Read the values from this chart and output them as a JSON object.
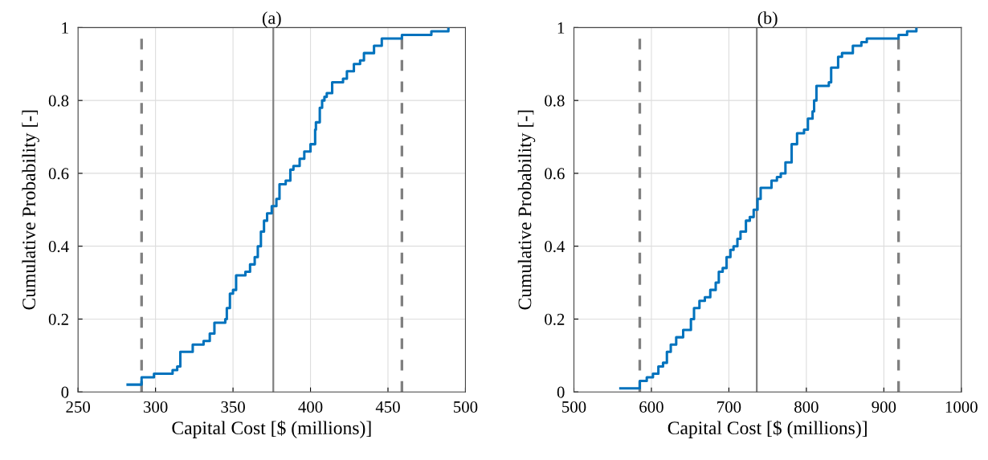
{
  "chart_data": [
    {
      "type": "step",
      "title": "(a)",
      "xlabel": "Capital Cost [$ (millions)]",
      "ylabel": "Cumulative Probability [-]",
      "xlim": [
        250,
        500
      ],
      "xticks": [
        250,
        300,
        350,
        400,
        450,
        500
      ],
      "ylim": [
        0,
        1
      ],
      "yticks": [
        0,
        0.2,
        0.4,
        0.6,
        0.8,
        1
      ],
      "grid": true,
      "series": [
        {
          "color": "#0072bd",
          "x": [
            282,
            291,
            299,
            311,
            314,
            316,
            324,
            331,
            335,
            338,
            345,
            346,
            348,
            350,
            352,
            358,
            361,
            364,
            366,
            368,
            370,
            372,
            375,
            378,
            380,
            384,
            387,
            389,
            393,
            396,
            400,
            403,
            403.5,
            406,
            407.5,
            409,
            410.5,
            414,
            421,
            423.5,
            428,
            432,
            434.5,
            441,
            446,
            459,
            478,
            489
          ],
          "values": [
            0.02,
            0.04,
            0.05,
            0.06,
            0.07,
            0.11,
            0.13,
            0.14,
            0.16,
            0.19,
            0.2,
            0.23,
            0.27,
            0.28,
            0.32,
            0.33,
            0.35,
            0.37,
            0.4,
            0.44,
            0.47,
            0.49,
            0.51,
            0.53,
            0.57,
            0.58,
            0.61,
            0.62,
            0.64,
            0.66,
            0.68,
            0.72,
            0.74,
            0.78,
            0.8,
            0.81,
            0.82,
            0.85,
            0.86,
            0.88,
            0.9,
            0.91,
            0.93,
            0.95,
            0.97,
            0.98,
            0.99,
            1.0
          ]
        }
      ],
      "ref_lines": [
        {
          "axis": "x",
          "value": 291,
          "color": "#808080",
          "line_style": "dashed"
        },
        {
          "axis": "x",
          "value": 376,
          "color": "#808080",
          "line_style": "solid"
        },
        {
          "axis": "x",
          "value": 459,
          "color": "#808080",
          "line_style": "dashed"
        }
      ]
    },
    {
      "type": "step",
      "title": "(b)",
      "xlabel": "Capital Cost [$ (millions)]",
      "ylabel": "Cumulative Probability [-]",
      "xlim": [
        500,
        1000
      ],
      "xticks": [
        500,
        600,
        700,
        800,
        900,
        1000
      ],
      "ylim": [
        0,
        1
      ],
      "yticks": [
        0,
        0.2,
        0.4,
        0.6,
        0.8,
        1
      ],
      "grid": true,
      "series": [
        {
          "color": "#0072bd",
          "x": [
            560,
            585,
            594,
            602,
            609,
            615,
            620,
            625,
            632,
            641,
            651,
            655,
            662,
            669,
            676,
            683,
            687,
            692,
            697,
            702,
            706,
            711,
            715,
            722,
            727,
            732,
            737,
            741,
            755,
            762,
            767,
            773,
            781,
            788,
            797,
            802,
            808,
            810,
            813,
            829,
            832,
            841,
            846,
            860,
            871,
            878,
            919,
            930,
            942
          ],
          "values": [
            0.01,
            0.03,
            0.04,
            0.05,
            0.07,
            0.08,
            0.11,
            0.13,
            0.15,
            0.17,
            0.2,
            0.23,
            0.25,
            0.26,
            0.28,
            0.3,
            0.33,
            0.34,
            0.37,
            0.39,
            0.4,
            0.42,
            0.44,
            0.47,
            0.48,
            0.5,
            0.53,
            0.56,
            0.58,
            0.59,
            0.6,
            0.63,
            0.68,
            0.71,
            0.72,
            0.75,
            0.77,
            0.8,
            0.84,
            0.85,
            0.89,
            0.92,
            0.93,
            0.95,
            0.96,
            0.97,
            0.98,
            0.99,
            1.0
          ]
        }
      ],
      "ref_lines": [
        {
          "axis": "x",
          "value": 585,
          "color": "#808080",
          "line_style": "dashed"
        },
        {
          "axis": "x",
          "value": 736,
          "color": "#808080",
          "line_style": "solid"
        },
        {
          "axis": "x",
          "value": 919,
          "color": "#808080",
          "line_style": "dashed"
        }
      ]
    }
  ]
}
